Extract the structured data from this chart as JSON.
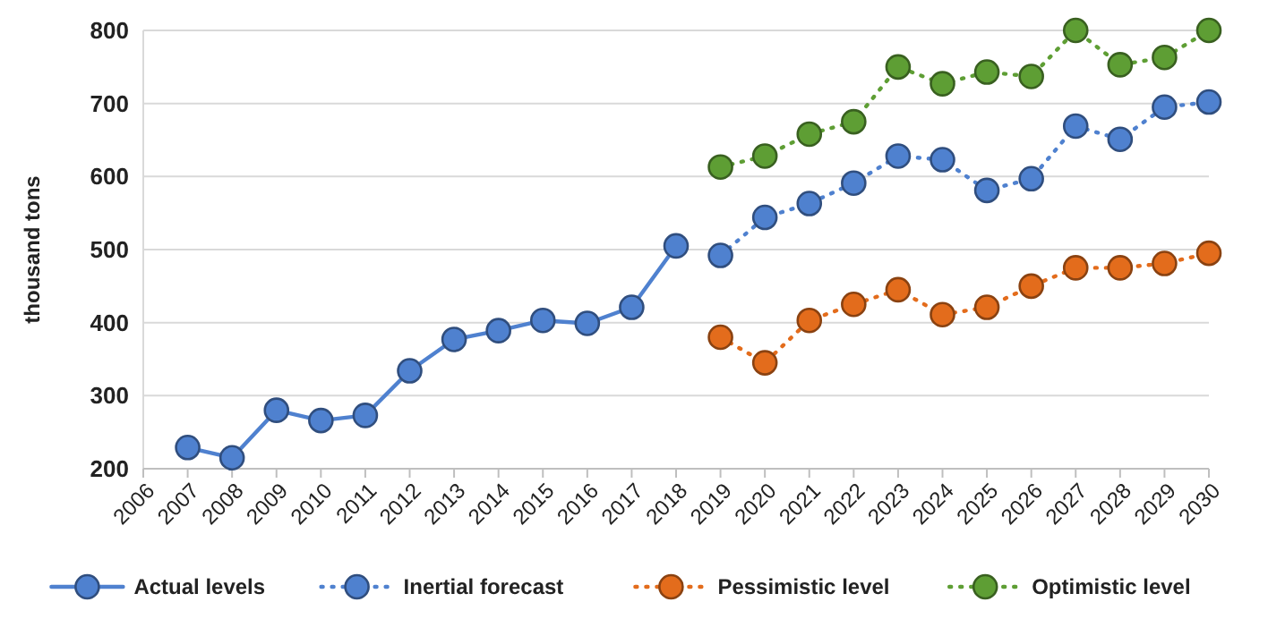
{
  "chart_data": {
    "type": "line",
    "ylabel": "thousand tons",
    "categories": [
      "2006",
      "2007",
      "2008",
      "2009",
      "2010",
      "2011",
      "2012",
      "2013",
      "2014",
      "2015",
      "2016",
      "2017",
      "2018",
      "2019",
      "2020",
      "2021",
      "2022",
      "2023",
      "2024",
      "2025",
      "2026",
      "2027",
      "2028",
      "2029",
      "2030"
    ],
    "ylim": [
      200,
      800
    ],
    "yticks": [
      200,
      300,
      400,
      500,
      600,
      700,
      800
    ],
    "grid": "y",
    "legend": "bottom",
    "marker": "circle",
    "series": [
      {
        "name": "Actual levels",
        "color": "#4f81cf",
        "line_style": "solid",
        "values": [
          null,
          229,
          215,
          280,
          266,
          273,
          334,
          377,
          389,
          403,
          399,
          421,
          505,
          null,
          null,
          null,
          null,
          null,
          null,
          null,
          null,
          null,
          null,
          null,
          null
        ]
      },
      {
        "name": "Inertial forecast",
        "color": "#4f81cf",
        "line_style": "dotted",
        "values": [
          null,
          null,
          null,
          null,
          null,
          null,
          null,
          null,
          null,
          null,
          null,
          null,
          null,
          492,
          544,
          563,
          591,
          628,
          623,
          581,
          597,
          669,
          651,
          695,
          702
        ]
      },
      {
        "name": "Pessimistic level",
        "color": "#e36c1c",
        "line_style": "dotted",
        "values": [
          null,
          null,
          null,
          null,
          null,
          null,
          null,
          null,
          null,
          null,
          null,
          null,
          null,
          380,
          345,
          403,
          425,
          445,
          411,
          421,
          450,
          475,
          475,
          481,
          495
        ]
      },
      {
        "name": "Optimistic level",
        "color": "#5e9e34",
        "line_style": "dotted",
        "values": [
          null,
          null,
          null,
          null,
          null,
          null,
          null,
          null,
          null,
          null,
          null,
          null,
          null,
          613,
          628,
          658,
          675,
          750,
          727,
          743,
          737,
          800,
          753,
          763,
          800
        ]
      }
    ]
  }
}
